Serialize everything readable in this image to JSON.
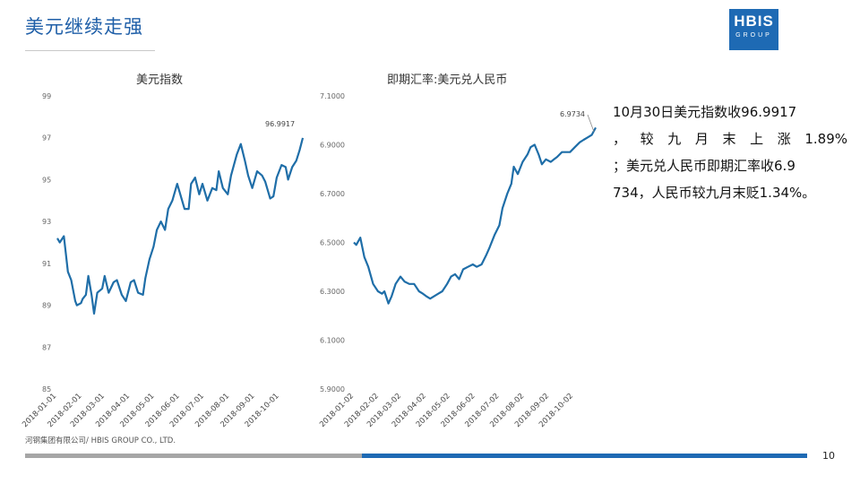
{
  "slide": {
    "title": "美元继续走强",
    "logo_main": "HBIS",
    "logo_sub": "GROUP",
    "commentary_lines": [
      "10月30日美元指数收96.9917",
      "， 较 九 月 末 上 涨 1.89%",
      "；美元兑人民币即期汇率收6.9",
      "734，人民币较九月末贬1.34%。"
    ],
    "source": "河钢集团有限公司/ HBIS GROUP CO., LTD.",
    "page_number": "10"
  },
  "colors": {
    "accent": "#1e6ab4",
    "line": "#1f6ea8",
    "footer_gray": "#a6a6a6"
  },
  "chart_data": [
    {
      "type": "line",
      "title": "美元指数",
      "ylim": [
        85,
        99
      ],
      "yticks": [
        "99",
        "97",
        "95",
        "93",
        "91",
        "89",
        "87",
        "85"
      ],
      "xticks": [
        "2018-01-01",
        "2018-02-01",
        "2018-03-01",
        "2018-04-01",
        "2018-05-01",
        "2018-06-01",
        "2018-07-01",
        "2018-08-01",
        "2018-09-01",
        "2018-10-01"
      ],
      "annotation": "96.9917",
      "series": [
        {
          "points": [
            [
              "2018-01-02",
              92.2
            ],
            [
              "2018-01-05",
              92.0
            ],
            [
              "2018-01-10",
              92.3
            ],
            [
              "2018-01-15",
              90.6
            ],
            [
              "2018-01-19",
              90.2
            ],
            [
              "2018-01-24",
              89.2
            ],
            [
              "2018-01-26",
              89.0
            ],
            [
              "2018-01-31",
              89.1
            ],
            [
              "2018-02-02",
              89.3
            ],
            [
              "2018-02-06",
              89.5
            ],
            [
              "2018-02-09",
              90.4
            ],
            [
              "2018-02-13",
              89.5
            ],
            [
              "2018-02-16",
              88.6
            ],
            [
              "2018-02-20",
              89.6
            ],
            [
              "2018-02-26",
              89.8
            ],
            [
              "2018-03-01",
              90.4
            ],
            [
              "2018-03-06",
              89.6
            ],
            [
              "2018-03-12",
              90.1
            ],
            [
              "2018-03-16",
              90.2
            ],
            [
              "2018-03-22",
              89.5
            ],
            [
              "2018-03-27",
              89.2
            ],
            [
              "2018-04-02",
              90.1
            ],
            [
              "2018-04-06",
              90.2
            ],
            [
              "2018-04-11",
              89.6
            ],
            [
              "2018-04-17",
              89.5
            ],
            [
              "2018-04-20",
              90.3
            ],
            [
              "2018-04-25",
              91.2
            ],
            [
              "2018-04-30",
              91.8
            ],
            [
              "2018-05-04",
              92.6
            ],
            [
              "2018-05-09",
              93.0
            ],
            [
              "2018-05-14",
              92.6
            ],
            [
              "2018-05-18",
              93.6
            ],
            [
              "2018-05-23",
              94.0
            ],
            [
              "2018-05-29",
              94.8
            ],
            [
              "2018-06-04",
              94.0
            ],
            [
              "2018-06-07",
              93.6
            ],
            [
              "2018-06-12",
              93.6
            ],
            [
              "2018-06-15",
              94.8
            ],
            [
              "2018-06-20",
              95.1
            ],
            [
              "2018-06-25",
              94.3
            ],
            [
              "2018-06-29",
              94.8
            ],
            [
              "2018-07-05",
              94.0
            ],
            [
              "2018-07-11",
              94.6
            ],
            [
              "2018-07-16",
              94.5
            ],
            [
              "2018-07-19",
              95.4
            ],
            [
              "2018-07-24",
              94.6
            ],
            [
              "2018-07-30",
              94.3
            ],
            [
              "2018-08-03",
              95.2
            ],
            [
              "2018-08-10",
              96.2
            ],
            [
              "2018-08-15",
              96.7
            ],
            [
              "2018-08-20",
              95.9
            ],
            [
              "2018-08-24",
              95.2
            ],
            [
              "2018-08-29",
              94.6
            ],
            [
              "2018-09-04",
              95.4
            ],
            [
              "2018-09-10",
              95.2
            ],
            [
              "2018-09-14",
              94.9
            ],
            [
              "2018-09-20",
              94.1
            ],
            [
              "2018-09-24",
              94.2
            ],
            [
              "2018-09-28",
              95.1
            ],
            [
              "2018-10-04",
              95.7
            ],
            [
              "2018-10-09",
              95.6
            ],
            [
              "2018-10-12",
              95.0
            ],
            [
              "2018-10-17",
              95.6
            ],
            [
              "2018-10-22",
              95.9
            ],
            [
              "2018-10-26",
              96.4
            ],
            [
              "2018-10-30",
              96.99
            ]
          ]
        }
      ]
    },
    {
      "type": "line",
      "title": "即期汇率:美元兑人民币",
      "ylim": [
        5.9,
        7.1
      ],
      "yticks": [
        "7.1000",
        "6.9000",
        "6.7000",
        "6.5000",
        "6.3000",
        "6.1000",
        "5.9000"
      ],
      "xticks": [
        "2018-01-02",
        "2018-02-02",
        "2018-03-02",
        "2018-04-02",
        "2018-05-02",
        "2018-06-02",
        "2018-07-02",
        "2018-08-02",
        "2018-09-02",
        "2018-10-02"
      ],
      "annotation": "6.9734",
      "series": [
        {
          "points": [
            [
              "2018-01-02",
              6.5
            ],
            [
              "2018-01-05",
              6.49
            ],
            [
              "2018-01-10",
              6.52
            ],
            [
              "2018-01-15",
              6.44
            ],
            [
              "2018-01-20",
              6.4
            ],
            [
              "2018-01-26",
              6.33
            ],
            [
              "2018-02-01",
              6.3
            ],
            [
              "2018-02-06",
              6.29
            ],
            [
              "2018-02-09",
              6.3
            ],
            [
              "2018-02-14",
              6.25
            ],
            [
              "2018-02-18",
              6.28
            ],
            [
              "2018-02-23",
              6.33
            ],
            [
              "2018-03-01",
              6.36
            ],
            [
              "2018-03-06",
              6.34
            ],
            [
              "2018-03-12",
              6.33
            ],
            [
              "2018-03-18",
              6.33
            ],
            [
              "2018-03-24",
              6.3
            ],
            [
              "2018-03-29",
              6.29
            ],
            [
              "2018-04-02",
              6.28
            ],
            [
              "2018-04-07",
              6.27
            ],
            [
              "2018-04-12",
              6.28
            ],
            [
              "2018-04-17",
              6.29
            ],
            [
              "2018-04-22",
              6.3
            ],
            [
              "2018-04-28",
              6.33
            ],
            [
              "2018-05-03",
              6.36
            ],
            [
              "2018-05-08",
              6.37
            ],
            [
              "2018-05-13",
              6.35
            ],
            [
              "2018-05-18",
              6.39
            ],
            [
              "2018-05-24",
              6.4
            ],
            [
              "2018-05-30",
              6.41
            ],
            [
              "2018-06-04",
              6.4
            ],
            [
              "2018-06-10",
              6.41
            ],
            [
              "2018-06-16",
              6.45
            ],
            [
              "2018-06-20",
              6.48
            ],
            [
              "2018-06-26",
              6.53
            ],
            [
              "2018-07-02",
              6.57
            ],
            [
              "2018-07-06",
              6.64
            ],
            [
              "2018-07-12",
              6.7
            ],
            [
              "2018-07-17",
              6.74
            ],
            [
              "2018-07-20",
              6.81
            ],
            [
              "2018-07-25",
              6.78
            ],
            [
              "2018-07-31",
              6.83
            ],
            [
              "2018-08-06",
              6.86
            ],
            [
              "2018-08-10",
              6.89
            ],
            [
              "2018-08-15",
              6.9
            ],
            [
              "2018-08-20",
              6.86
            ],
            [
              "2018-08-24",
              6.82
            ],
            [
              "2018-08-29",
              6.84
            ],
            [
              "2018-09-04",
              6.83
            ],
            [
              "2018-09-08",
              6.84
            ],
            [
              "2018-09-12",
              6.85
            ],
            [
              "2018-09-18",
              6.87
            ],
            [
              "2018-09-24",
              6.87
            ],
            [
              "2018-09-28",
              6.87
            ],
            [
              "2018-10-04",
              6.89
            ],
            [
              "2018-10-10",
              6.91
            ],
            [
              "2018-10-15",
              6.92
            ],
            [
              "2018-10-20",
              6.93
            ],
            [
              "2018-10-25",
              6.94
            ],
            [
              "2018-10-30",
              6.97
            ]
          ]
        }
      ]
    }
  ]
}
